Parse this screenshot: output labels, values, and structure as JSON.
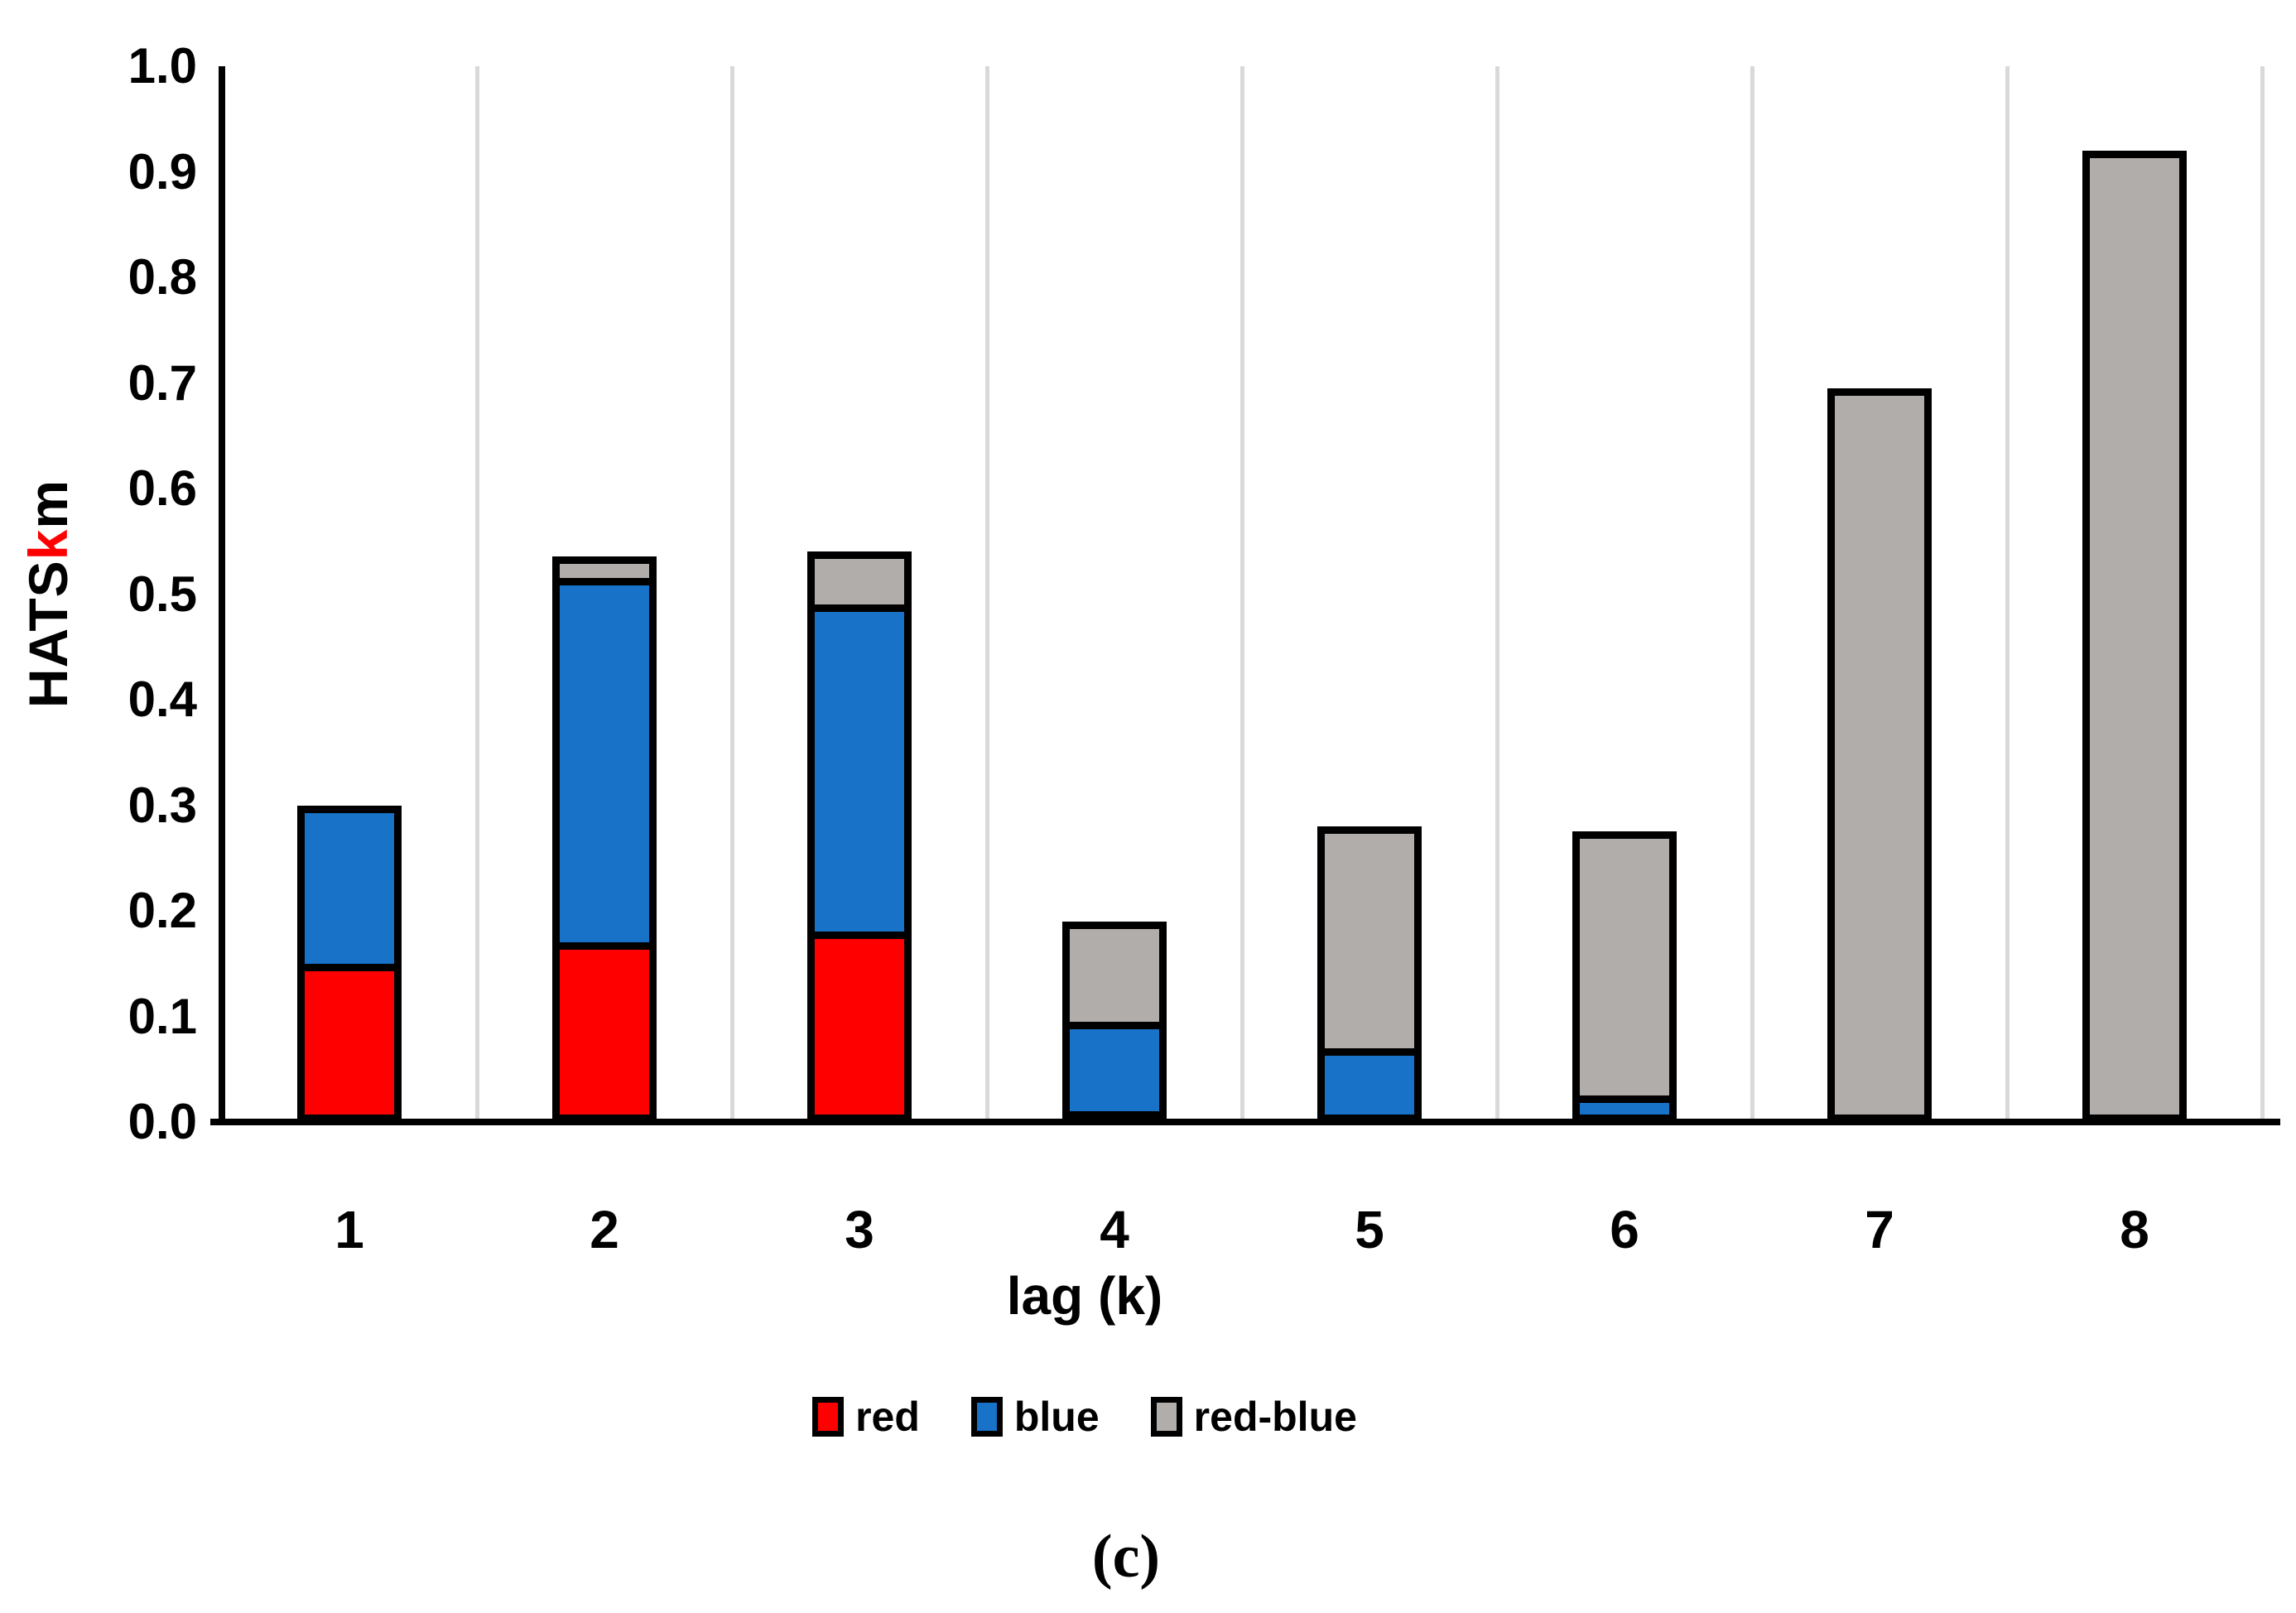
{
  "figure": {
    "caption": "(c)",
    "background": "#FFFFFF"
  },
  "chart_data": {
    "type": "bar",
    "stacked": true,
    "title": "",
    "xlabel": "lag (k)",
    "ylabel": "HATSkm",
    "ylabel_parts": [
      {
        "text": "HATS",
        "color": "#000000"
      },
      {
        "text": "k",
        "color": "#FF0000"
      },
      {
        "text": "m",
        "color": "#000000"
      }
    ],
    "categories": [
      "1",
      "2",
      "3",
      "4",
      "5",
      "6",
      "7",
      "8"
    ],
    "series": [
      {
        "name": "red",
        "color": "#FF0000",
        "values": [
          0.15,
          0.17,
          0.18,
          0.01,
          0,
          0,
          0,
          0
        ]
      },
      {
        "name": "blue",
        "color": "#1772C8",
        "values": [
          0.15,
          0.345,
          0.31,
          0.085,
          0.07,
          0.025,
          0,
          0
        ]
      },
      {
        "name": "red-blue",
        "color": "#B1ADAB",
        "values": [
          0,
          0.02,
          0.05,
          0.095,
          0.21,
          0.25,
          0.695,
          0.92
        ]
      }
    ],
    "bar_totals": [
      0.3,
      0.535,
      0.54,
      0.19,
      0.28,
      0.275,
      0.695,
      0.92
    ],
    "ylim": [
      0.0,
      1.0
    ],
    "yticks": [
      "0.0",
      "0.1",
      "0.2",
      "0.3",
      "0.4",
      "0.5",
      "0.6",
      "0.7",
      "0.8",
      "0.9",
      "1.0"
    ],
    "grid": "vertical category separators, top of every category slot",
    "gridline_color": "#D9D9D9",
    "axis_color": "#000000",
    "bar_border_color": "#000000",
    "legend": {
      "position": "bottom",
      "entries": [
        {
          "label": "red",
          "color": "#FF0000"
        },
        {
          "label": "blue",
          "color": "#1772C8"
        },
        {
          "label": "red-blue",
          "color": "#B1ADAB"
        }
      ]
    }
  }
}
